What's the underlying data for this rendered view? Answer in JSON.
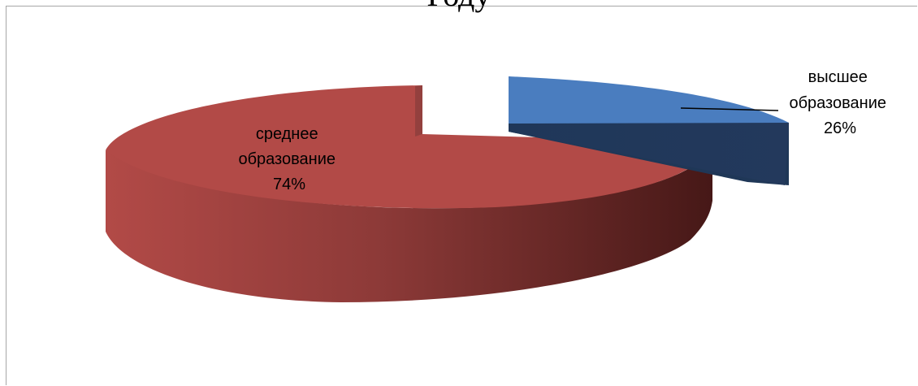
{
  "chart_data": {
    "type": "pie",
    "subtype": "3d-exploded",
    "title": "Году",
    "categories": [
      "высшее образование",
      "среднее образование"
    ],
    "values": [
      26,
      74
    ],
    "labels": [
      {
        "name": "высшее образование",
        "percent": "26%"
      },
      {
        "name": "среднее образование",
        "percent": "74%"
      }
    ],
    "colors": [
      "#4a7dbf",
      "#c0504d"
    ],
    "legend": "none"
  }
}
